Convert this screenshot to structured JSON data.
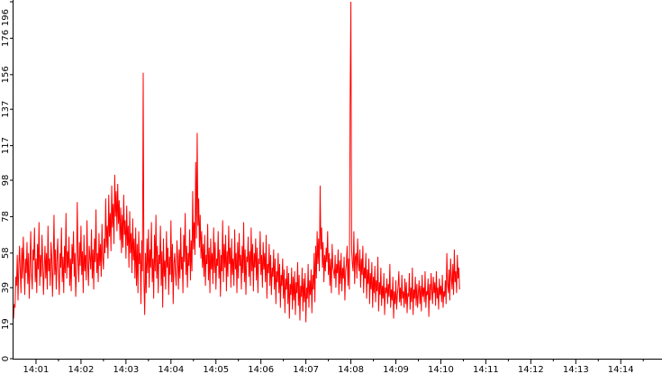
{
  "chart_data": {
    "type": "line",
    "title": "",
    "xlabel": "",
    "ylabel": "",
    "line_color": "#ff0000",
    "axis_color": "#000000",
    "background": "#ffffff",
    "grid": false,
    "legend": "none",
    "y_ticks": [
      0,
      19,
      39,
      58,
      78,
      98,
      117,
      137,
      156,
      176,
      196
    ],
    "x_ticks": [
      "14:01",
      "14:02",
      "14:03",
      "14:04",
      "14:05",
      "14:06",
      "14:07",
      "14:08",
      "14:09",
      "14:10",
      "14:11",
      "14:12",
      "14:13",
      "14:14"
    ],
    "xlim": [
      "14:00:30",
      "14:14:55"
    ],
    "ylim": [
      0,
      196
    ],
    "series": [
      {
        "x_start": "14:00:30",
        "step_seconds": 1,
        "values": [
          22,
          30,
          28,
          45,
          40,
          57,
          32,
          50,
          62,
          48,
          36,
          61,
          44,
          67,
          52,
          35,
          55,
          47,
          64,
          41,
          58,
          33,
          52,
          70,
          46,
          38,
          60,
          54,
          72,
          42,
          55,
          36,
          63,
          49,
          75,
          40,
          57,
          45,
          68,
          52,
          35,
          50,
          62,
          44,
          58,
          38,
          73,
          48,
          55,
          40,
          64,
          56,
          34,
          52,
          79,
          46,
          60,
          38,
          54,
          66,
          48,
          35,
          58,
          50,
          72,
          42,
          56,
          36,
          62,
          47,
          80,
          44,
          59,
          50,
          67,
          40,
          55,
          37,
          63,
          52,
          70,
          45,
          58,
          34,
          49,
          86,
          55,
          42,
          64,
          51,
          73,
          46,
          59,
          36,
          68,
          48,
          57,
          43,
          76,
          52,
          40,
          62,
          55,
          49,
          71,
          44,
          60,
          38,
          66,
          53,
          82,
          47,
          58,
          42,
          69,
          51,
          63,
          45,
          74,
          56,
          49,
          66,
          58,
          88,
          61,
          73,
          55,
          90,
          67,
          80,
          59,
          95,
          72,
          85,
          63,
          101,
          78,
          92,
          70,
          96,
          74,
          87,
          65,
          83,
          58,
          79,
          61,
          90,
          68,
          76,
          55,
          84,
          62,
          73,
          50,
          81,
          58,
          69,
          47,
          77,
          54,
          66,
          44,
          72,
          40,
          63,
          36,
          70,
          52,
          58,
          30,
          65,
          48,
          157,
          42,
          24,
          58,
          36,
          66,
          47,
          71,
          39,
          60,
          50,
          75,
          42,
          55,
          33,
          68,
          48,
          79,
          44,
          62,
          36,
          57,
          52,
          73,
          40,
          59,
          28,
          66,
          45,
          54,
          38,
          70,
          50,
          61,
          35,
          56,
          46,
          76,
          42,
          63,
          30,
          52,
          58,
          47,
          40,
          65,
          55,
          38,
          60,
          44,
          72,
          49,
          56,
          36,
          68,
          53,
          80,
          46,
          62,
          39,
          58,
          51,
          71,
          43,
          65,
          48,
          92,
          60,
          75,
          57,
          108,
          66,
          124,
          73,
          88,
          61,
          79,
          55,
          70,
          50,
          63,
          45,
          68,
          40,
          57,
          52,
          74,
          43,
          61,
          36,
          66,
          49,
          58,
          41,
          72,
          47,
          64,
          38,
          55,
          51,
          70,
          44,
          60,
          34,
          57,
          48,
          76,
          42,
          63,
          50,
          68,
          37,
          59,
          45,
          73,
          52,
          61,
          39,
          66,
          46,
          55,
          40,
          71,
          49,
          58,
          36,
          64,
          44,
          69,
          51,
          57,
          38,
          62,
          47,
          75,
          42,
          60,
          35,
          56,
          53,
          67,
          45,
          59,
          40,
          72,
          48,
          63,
          37,
          58,
          50,
          66,
          43,
          61,
          36,
          55,
          52,
          70,
          46,
          57,
          39,
          64,
          49,
          58,
          42,
          68,
          33,
          52,
          47,
          63,
          40,
          57,
          35,
          50,
          45,
          60,
          38,
          55,
          30,
          48,
          42,
          58,
          36,
          52,
          28,
          46,
          40,
          55,
          33,
          49,
          25,
          44,
          38,
          51,
          30,
          47,
          22,
          41,
          35,
          50,
          27,
          45,
          32,
          48,
          24,
          42,
          36,
          53,
          29,
          46,
          21,
          40,
          34,
          50,
          26,
          44,
          31,
          47,
          20,
          39,
          33,
          52,
          28,
          43,
          35,
          49,
          25,
          46,
          38,
          58,
          31,
          62,
          44,
          70,
          52,
          66,
          48,
          95,
          60,
          72,
          50,
          64,
          42,
          57,
          48,
          61,
          53,
          70,
          46,
          58,
          40,
          55,
          36,
          63,
          50,
          48,
          44,
          57,
          39,
          52,
          47,
          60,
          35,
          54,
          41,
          58,
          37,
          50,
          44,
          56,
          32,
          48,
          52,
          62,
          40,
          55,
          38,
          140,
          196,
          60,
          52,
          48,
          70,
          41,
          56,
          58,
          44,
          66,
          52,
          48,
          60,
          39,
          55,
          46,
          62,
          36,
          50,
          44,
          58,
          33,
          49,
          41,
          55,
          30,
          47,
          38,
          53,
          28,
          45,
          36,
          51,
          31,
          43,
          37,
          56,
          26,
          42,
          35,
          50,
          29,
          40,
          33,
          47,
          24,
          39,
          36,
          44,
          30,
          41,
          34,
          52,
          28,
          38,
          32,
          45,
          22,
          37,
          30,
          43,
          27,
          35,
          40,
          48,
          31,
          39,
          29,
          46,
          33,
          37,
          28,
          44,
          30,
          42,
          25,
          36,
          34,
          47,
          27,
          39,
          31,
          50,
          24,
          38,
          33,
          45,
          29,
          41,
          28,
          36,
          43,
          30,
          40,
          26,
          46,
          34,
          39,
          31,
          48,
          28,
          37,
          35,
          44,
          23,
          41,
          32,
          47,
          38,
          30,
          45,
          36,
          42,
          29,
          48,
          33,
          39,
          27,
          44,
          35,
          40,
          31,
          46,
          28,
          37,
          34,
          43,
          30,
          58,
          41,
          36,
          49,
          32,
          55,
          45,
          38,
          52,
          35,
          60,
          42,
          48,
          36,
          57,
          44,
          50,
          38
        ]
      }
    ]
  }
}
